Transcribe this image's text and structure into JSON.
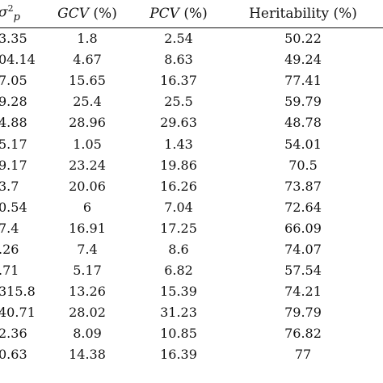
{
  "header": {
    "col0_symbol": "σ",
    "col0_sup": "2",
    "col0_sub": "p",
    "gcv_italic": "GCV",
    "gcv_unit": " (%)",
    "pcv_italic": "PCV",
    "pcv_unit": " (%)",
    "heritability": "Heritability (%)"
  },
  "rows": [
    {
      "sigma": "3.35",
      "gcv": "1.8",
      "pcv": "2.54",
      "heritability": "50.22"
    },
    {
      "sigma": "04.14",
      "gcv": "4.67",
      "pcv": "8.63",
      "heritability": "49.24"
    },
    {
      "sigma": "7.05",
      "gcv": "15.65",
      "pcv": "16.37",
      "heritability": "77.41"
    },
    {
      "sigma": "9.28",
      "gcv": "25.4",
      "pcv": "25.5",
      "heritability": "59.79"
    },
    {
      "sigma": "4.88",
      "gcv": "28.96",
      "pcv": "29.63",
      "heritability": "48.78"
    },
    {
      "sigma": "5.17",
      "gcv": "1.05",
      "pcv": "1.43",
      "heritability": "54.01"
    },
    {
      "sigma": "9.17",
      "gcv": "23.24",
      "pcv": "19.86",
      "heritability": "70.5"
    },
    {
      "sigma": "3.7",
      "gcv": "20.06",
      "pcv": "16.26",
      "heritability": "73.87"
    },
    {
      "sigma": "0.54",
      "gcv": "6",
      "pcv": "7.04",
      "heritability": "72.64"
    },
    {
      "sigma": "7.4",
      "gcv": "16.91",
      "pcv": "17.25",
      "heritability": "66.09"
    },
    {
      "sigma": ".26",
      "gcv": "7.4",
      "pcv": "8.6",
      "heritability": "74.07"
    },
    {
      "sigma": ".71",
      "gcv": "5.17",
      "pcv": "6.82",
      "heritability": "57.54"
    },
    {
      "sigma": "315.8",
      "gcv": "13.26",
      "pcv": "15.39",
      "heritability": "74.21"
    },
    {
      "sigma": "40.71",
      "gcv": "28.02",
      "pcv": "31.23",
      "heritability": "79.79"
    },
    {
      "sigma": "2.36",
      "gcv": "8.09",
      "pcv": "10.85",
      "heritability": "76.82"
    },
    {
      "sigma": "0.63",
      "gcv": "14.38",
      "pcv": "16.39",
      "heritability": "77"
    }
  ]
}
